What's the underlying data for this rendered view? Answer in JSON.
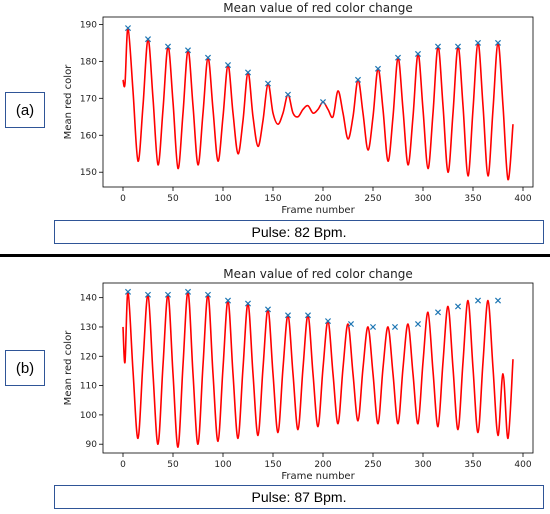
{
  "panels": [
    {
      "label": "(a)",
      "pulse_text": "Pulse: 82 Bpm."
    },
    {
      "label": "(b)",
      "pulse_text": "Pulse: 87 Bpm."
    }
  ],
  "chart_data": [
    {
      "type": "line",
      "title": "Mean value of red color change",
      "xlabel": "Frame number",
      "ylabel": "Mean red color",
      "xlim": [
        -20,
        410
      ],
      "ylim": [
        146,
        192
      ],
      "xticks": [
        0,
        50,
        100,
        150,
        200,
        250,
        300,
        350,
        400
      ],
      "yticks": [
        150,
        160,
        170,
        180,
        190
      ],
      "line_color": "#ff0000",
      "marker_color": "#1f77b4",
      "series": [
        {
          "x": [
            0,
            2,
            5,
            10,
            15,
            20,
            25,
            30,
            35,
            40,
            45,
            50,
            55,
            60,
            65,
            70,
            75,
            80,
            85,
            90,
            95,
            100,
            105,
            110,
            115,
            120,
            125,
            130,
            135,
            140,
            145,
            150,
            155,
            160,
            165,
            170,
            175,
            180,
            185,
            190,
            195,
            200,
            205,
            210,
            215,
            220,
            225,
            230,
            235,
            240,
            245,
            250,
            255,
            260,
            265,
            270,
            275,
            280,
            285,
            290,
            295,
            300,
            305,
            310,
            315,
            320,
            325,
            330,
            335,
            340,
            345,
            350,
            355,
            360,
            365,
            370,
            375,
            380,
            385,
            390
          ],
          "y": [
            175,
            174,
            189,
            172,
            153,
            168,
            186,
            170,
            152,
            167,
            184,
            169,
            151,
            166,
            183,
            168,
            152,
            166,
            181,
            167,
            153,
            165,
            179,
            166,
            155,
            164,
            177,
            165,
            157,
            164,
            174,
            166,
            163,
            166,
            171,
            166,
            165,
            167,
            168,
            166,
            167,
            169,
            167,
            165,
            172,
            166,
            159,
            165,
            175,
            166,
            156,
            165,
            178,
            167,
            153,
            165,
            181,
            167,
            152,
            165,
            182,
            167,
            151,
            166,
            184,
            168,
            150,
            166,
            184,
            168,
            149,
            167,
            185,
            168,
            149,
            167,
            185,
            168,
            148,
            163
          ]
        }
      ],
      "peaks": {
        "x": [
          5,
          25,
          45,
          65,
          85,
          105,
          125,
          145,
          165,
          200,
          235,
          255,
          275,
          295,
          315,
          335,
          355,
          375
        ],
        "y": [
          189,
          186,
          184,
          183,
          181,
          179,
          177,
          174,
          171,
          169,
          175,
          178,
          181,
          182,
          184,
          184,
          185,
          185
        ]
      }
    },
    {
      "type": "line",
      "title": "Mean value of red color change",
      "xlabel": "Frame number",
      "ylabel": "Mean red color",
      "xlim": [
        -20,
        410
      ],
      "ylim": [
        87,
        145
      ],
      "xticks": [
        0,
        50,
        100,
        150,
        200,
        250,
        300,
        350,
        400
      ],
      "yticks": [
        90,
        100,
        110,
        120,
        130,
        140
      ],
      "line_color": "#ff0000",
      "marker_color": "#1f77b4",
      "series": [
        {
          "x": [
            0,
            2,
            5,
            10,
            15,
            20,
            25,
            30,
            35,
            40,
            45,
            50,
            55,
            60,
            65,
            70,
            75,
            80,
            85,
            90,
            95,
            100,
            105,
            110,
            115,
            120,
            125,
            130,
            135,
            140,
            145,
            150,
            155,
            160,
            165,
            170,
            175,
            180,
            185,
            190,
            195,
            200,
            205,
            210,
            215,
            220,
            225,
            230,
            235,
            240,
            245,
            250,
            255,
            260,
            265,
            270,
            275,
            280,
            285,
            290,
            295,
            300,
            305,
            310,
            315,
            320,
            325,
            330,
            335,
            340,
            345,
            350,
            355,
            360,
            365,
            370,
            375,
            380,
            385,
            390
          ],
          "y": [
            130,
            118,
            142,
            115,
            92,
            118,
            141,
            114,
            90,
            117,
            141,
            114,
            89,
            117,
            142,
            114,
            90,
            117,
            141,
            114,
            91,
            116,
            139,
            114,
            92,
            116,
            138,
            114,
            93,
            116,
            136,
            114,
            94,
            116,
            134,
            114,
            95,
            116,
            134,
            114,
            96,
            116,
            132,
            114,
            97,
            116,
            131,
            114,
            98,
            116,
            130,
            114,
            97,
            116,
            130,
            114,
            97,
            116,
            131,
            114,
            97,
            118,
            135,
            115,
            96,
            118,
            137,
            116,
            95,
            118,
            139,
            116,
            94,
            118,
            139,
            116,
            93,
            114,
            92,
            119
          ]
        }
      ],
      "peaks": {
        "x": [
          5,
          25,
          45,
          65,
          85,
          105,
          125,
          145,
          165,
          185,
          205,
          228,
          250,
          272,
          295,
          315,
          335,
          355,
          375
        ],
        "y": [
          142,
          141,
          141,
          142,
          141,
          139,
          138,
          136,
          134,
          134,
          132,
          131,
          130,
          130,
          131,
          135,
          137,
          139,
          139
        ]
      }
    }
  ]
}
